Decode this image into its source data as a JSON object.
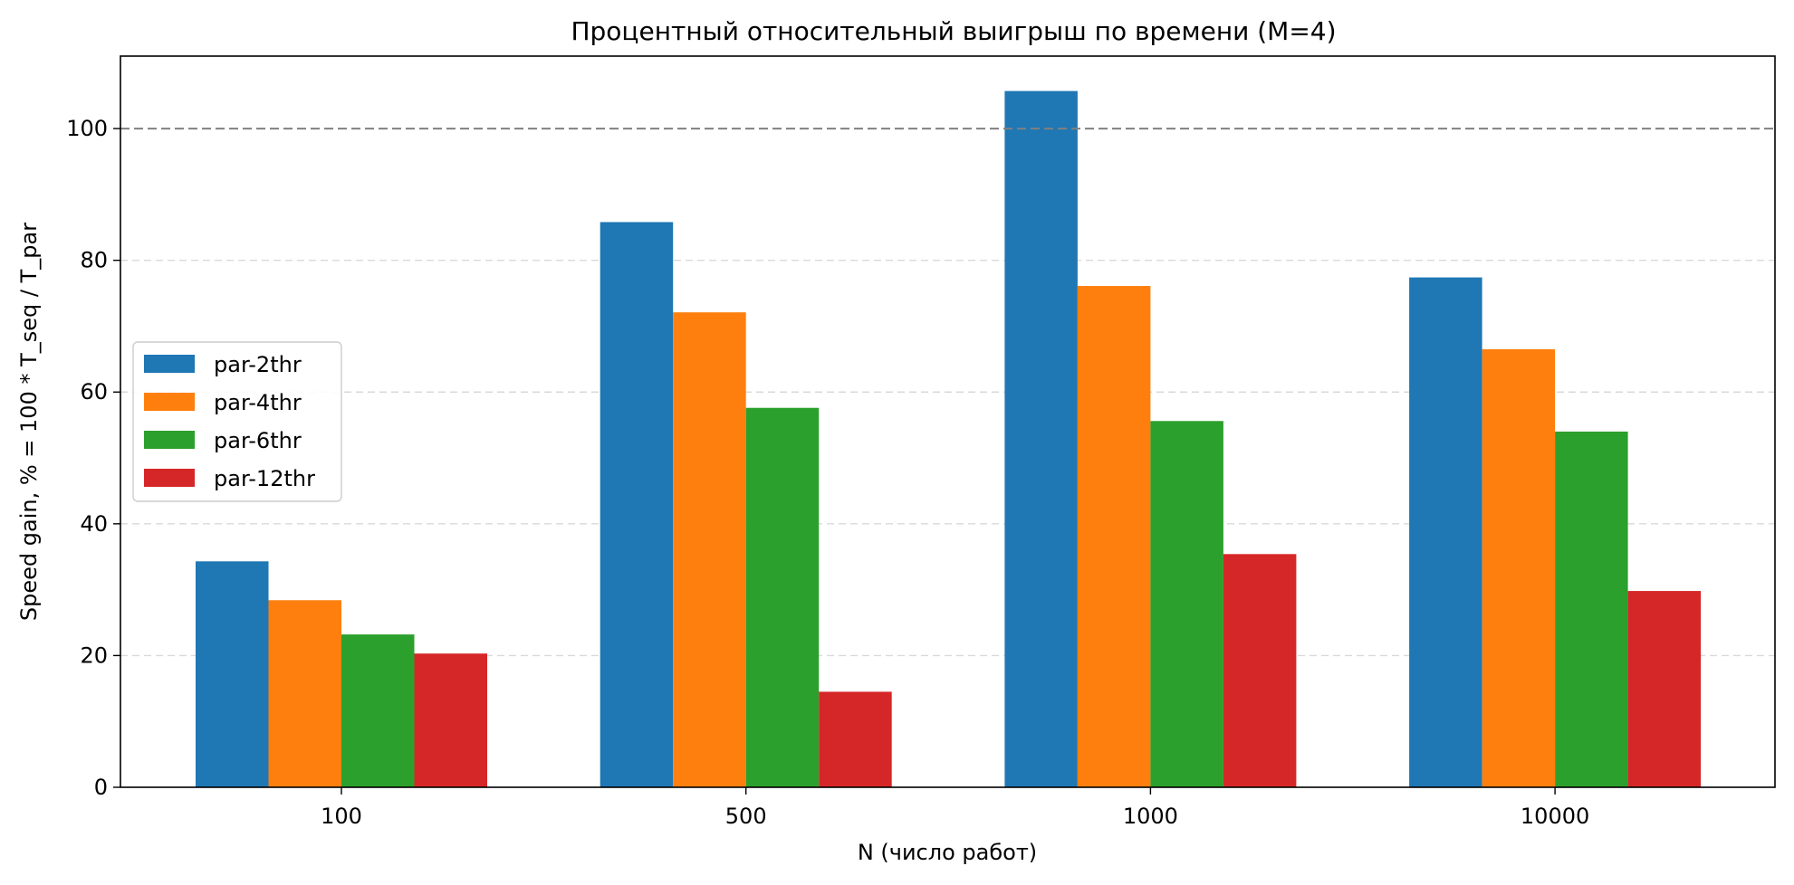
{
  "chart_data": {
    "type": "bar",
    "title": "Процентный относительный выигрыш по времени (M=4)",
    "xlabel": "N (число работ)",
    "ylabel": "Speed gain, % = 100 * T_seq / T_par",
    "categories": [
      "100",
      "500",
      "1000",
      "10000"
    ],
    "series": [
      {
        "name": "par-2thr",
        "color": "#1f77b4",
        "values": [
          34.3,
          85.8,
          105.7,
          77.4
        ]
      },
      {
        "name": "par-4thr",
        "color": "#ff7f0e",
        "values": [
          28.4,
          72.1,
          76.1,
          66.5
        ]
      },
      {
        "name": "par-6thr",
        "color": "#2ca02c",
        "values": [
          23.2,
          57.6,
          55.6,
          54.0
        ]
      },
      {
        "name": "par-12thr",
        "color": "#d62728",
        "values": [
          20.3,
          14.5,
          35.4,
          29.8
        ]
      }
    ],
    "ylim": [
      0,
      111
    ],
    "yticks": [
      0,
      20,
      40,
      60,
      80,
      100
    ],
    "reference_line": {
      "y": 100,
      "style": "dashed",
      "color": "#808080"
    },
    "grid": {
      "y": true,
      "style": "dashed"
    },
    "legend": {
      "position": "center-left"
    }
  }
}
